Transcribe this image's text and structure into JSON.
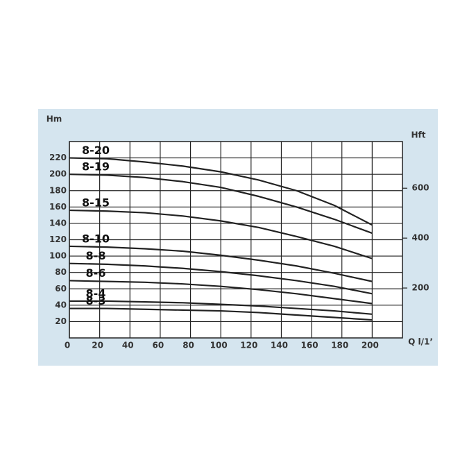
{
  "chart_data": {
    "type": "line",
    "y_label": "Hm",
    "y2_label": "Hft",
    "x_label": "Q l/1’",
    "x": [
      0,
      25,
      50,
      75,
      100,
      125,
      150,
      175,
      200
    ],
    "series": [
      {
        "name": "8-20",
        "color": "#222222",
        "values": [
          220,
          219,
          215,
          210,
          203,
          193,
          180,
          162,
          138
        ]
      },
      {
        "name": "8-19",
        "color": "#222222",
        "values": [
          200,
          199,
          196,
          191,
          184,
          173,
          160,
          145,
          128
        ]
      },
      {
        "name": "8-15",
        "color": "#222222",
        "values": [
          156,
          155,
          153,
          149,
          143,
          135,
          124,
          112,
          97
        ]
      },
      {
        "name": "8-10",
        "color": "#222222",
        "values": [
          112,
          111,
          109,
          106,
          101,
          95,
          88,
          79,
          69
        ]
      },
      {
        "name": "8-8",
        "color": "#222222",
        "values": [
          91,
          90,
          88,
          85,
          81,
          76,
          70,
          63,
          54
        ]
      },
      {
        "name": "8-6",
        "color": "#222222",
        "values": [
          70,
          69,
          68,
          66,
          63,
          59,
          54,
          48,
          42
        ]
      },
      {
        "name": "8-4",
        "color": "#222222",
        "values": [
          45,
          45,
          44,
          43,
          41,
          39,
          36,
          33,
          29
        ]
      },
      {
        "name": "8-3",
        "color": "#222222",
        "values": [
          36,
          36,
          35,
          34,
          33,
          31,
          28,
          25,
          22
        ]
      }
    ],
    "xlim": [
      0,
      220
    ],
    "xticks": [
      0,
      20,
      40,
      60,
      80,
      100,
      120,
      140,
      160,
      180,
      200
    ],
    "ylim": [
      0,
      240
    ],
    "yticks": [
      20,
      40,
      60,
      80,
      100,
      120,
      140,
      160,
      180,
      200,
      220
    ],
    "y2lim": [
      0,
      787
    ],
    "y2ticks": [
      200,
      400,
      600
    ],
    "grid": true
  }
}
